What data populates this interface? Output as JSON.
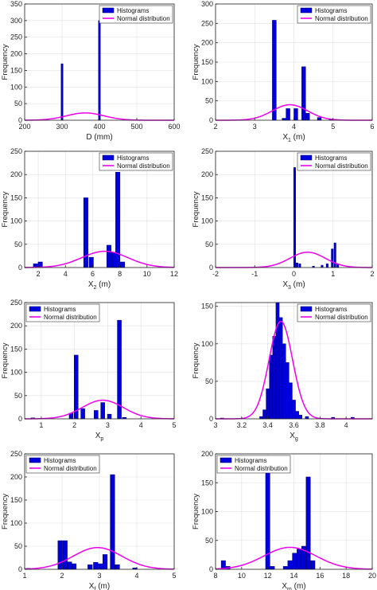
{
  "legend_labels": {
    "hist": "Histograms",
    "normal": "Normal distribution"
  },
  "colors": {
    "bar_fill": "#0000dd",
    "bar_edge": "#000066",
    "curve": "#ee00ee",
    "grid": "#e0e0e0",
    "axis": "#222222"
  },
  "chart_data": [
    {
      "type": "bar",
      "ylabel": "Frequency",
      "xlabel_main": "D (mm)",
      "xlabel_sub": "",
      "xlabel_unit": "",
      "xlim": [
        200,
        600
      ],
      "ylim": [
        0,
        350
      ],
      "xticks": [
        "200",
        "300",
        "400",
        "500",
        "600"
      ],
      "yticks": [
        "0",
        "50",
        "100",
        "150",
        "200",
        "250",
        "300",
        "350"
      ],
      "grid": true,
      "legend_position": "top-right",
      "bin_width": 5,
      "bars": [
        {
          "x": 300,
          "y": 170
        },
        {
          "x": 400,
          "y": 300
        }
      ],
      "normal": {
        "mean": 362,
        "sd": 50,
        "peak": 22
      }
    },
    {
      "type": "bar",
      "ylabel": "Frequency",
      "xlabel_main": "X",
      "xlabel_sub": "1",
      "xlabel_unit": " (m)",
      "xlim": [
        2,
        6
      ],
      "ylim": [
        0,
        300
      ],
      "xticks": [
        "2",
        "3",
        "4",
        "5",
        "6"
      ],
      "yticks": [
        "0",
        "50",
        "100",
        "150",
        "200",
        "250",
        "300"
      ],
      "grid": true,
      "legend_position": "top-right",
      "bin_width": 0.1,
      "bars": [
        {
          "x": 3.5,
          "y": 258
        },
        {
          "x": 3.75,
          "y": 5
        },
        {
          "x": 3.85,
          "y": 30
        },
        {
          "x": 4.05,
          "y": 30
        },
        {
          "x": 4.25,
          "y": 138
        },
        {
          "x": 4.35,
          "y": 18
        },
        {
          "x": 4.65,
          "y": 7
        },
        {
          "x": 4.95,
          "y": 3
        }
      ],
      "normal": {
        "mean": 3.9,
        "sd": 0.45,
        "peak": 40
      }
    },
    {
      "type": "bar",
      "ylabel": "Frequency",
      "xlabel_main": "X",
      "xlabel_sub": "2",
      "xlabel_unit": " (m)",
      "xlim": [
        1,
        12
      ],
      "ylim": [
        0,
        250
      ],
      "xticks": [
        "2",
        "4",
        "6",
        "8",
        "10",
        "12"
      ],
      "yticks": [
        "0",
        "50",
        "100",
        "150",
        "200",
        "250"
      ],
      "grid": true,
      "legend_position": "top-right",
      "bin_width": 0.32,
      "bars": [
        {
          "x": 1.8,
          "y": 8
        },
        {
          "x": 2.15,
          "y": 12
        },
        {
          "x": 5.5,
          "y": 150
        },
        {
          "x": 5.9,
          "y": 22
        },
        {
          "x": 7.2,
          "y": 48
        },
        {
          "x": 7.55,
          "y": 32
        },
        {
          "x": 7.85,
          "y": 205
        },
        {
          "x": 8.2,
          "y": 12
        }
      ],
      "normal": {
        "mean": 6.9,
        "sd": 1.7,
        "peak": 35
      }
    },
    {
      "type": "bar",
      "ylabel": "Frequency",
      "xlabel_main": "X",
      "xlabel_sub": "3",
      "xlabel_unit": " (m)",
      "xlim": [
        -2,
        2
      ],
      "ylim": [
        0,
        250
      ],
      "xticks": [
        "-2",
        "-1",
        "0",
        "1",
        "2"
      ],
      "yticks": [
        "0",
        "50",
        "100",
        "150",
        "200",
        "250"
      ],
      "grid": true,
      "legend_position": "top-right",
      "bin_width": 0.05,
      "bars": [
        {
          "x": 0.02,
          "y": 215
        },
        {
          "x": 0.08,
          "y": 10
        },
        {
          "x": 0.15,
          "y": 8
        },
        {
          "x": 0.5,
          "y": 3
        },
        {
          "x": 0.72,
          "y": 5
        },
        {
          "x": 0.85,
          "y": 8
        },
        {
          "x": 0.98,
          "y": 40
        },
        {
          "x": 1.05,
          "y": 53
        },
        {
          "x": 1.12,
          "y": 8
        }
      ],
      "normal": {
        "mean": 0.35,
        "sd": 0.45,
        "peak": 33
      }
    },
    {
      "type": "bar",
      "ylabel": "Frequency",
      "xlabel_main": "X",
      "xlabel_sub": "p",
      "xlabel_unit": "",
      "xlim": [
        0.5,
        5
      ],
      "ylim": [
        0,
        250
      ],
      "xticks": [
        "1",
        "2",
        "3",
        "4",
        "5"
      ],
      "yticks": [
        "0",
        "50",
        "100",
        "150",
        "200",
        "250"
      ],
      "grid": true,
      "legend_position": "top-left",
      "bin_width": 0.12,
      "bars": [
        {
          "x": 0.75,
          "y": 2
        },
        {
          "x": 1.9,
          "y": 12
        },
        {
          "x": 2.05,
          "y": 137
        },
        {
          "x": 2.25,
          "y": 22
        },
        {
          "x": 2.65,
          "y": 18
        },
        {
          "x": 2.85,
          "y": 35
        },
        {
          "x": 3.05,
          "y": 10
        },
        {
          "x": 3.35,
          "y": 212
        },
        {
          "x": 3.5,
          "y": 3
        }
      ],
      "normal": {
        "mean": 2.85,
        "sd": 0.62,
        "peak": 40
      }
    },
    {
      "type": "bar",
      "ylabel": "Frequency",
      "xlabel_main": "X",
      "xlabel_sub": "g",
      "xlabel_unit": "",
      "xlim": [
        3,
        4.2
      ],
      "ylim": [
        0,
        155
      ],
      "xticks": [
        "3",
        "3.2",
        "3.4",
        "3.6",
        "3.8",
        "4"
      ],
      "yticks": [
        "0",
        "50",
        "100",
        "150"
      ],
      "grid": true,
      "legend_position": "top-right",
      "bin_width": 0.025,
      "bars": [
        {
          "x": 3.05,
          "y": 1
        },
        {
          "x": 3.35,
          "y": 3
        },
        {
          "x": 3.375,
          "y": 12
        },
        {
          "x": 3.4,
          "y": 40
        },
        {
          "x": 3.425,
          "y": 85
        },
        {
          "x": 3.45,
          "y": 110
        },
        {
          "x": 3.475,
          "y": 155
        },
        {
          "x": 3.5,
          "y": 135
        },
        {
          "x": 3.525,
          "y": 100
        },
        {
          "x": 3.55,
          "y": 75
        },
        {
          "x": 3.575,
          "y": 48
        },
        {
          "x": 3.6,
          "y": 25
        },
        {
          "x": 3.625,
          "y": 10
        },
        {
          "x": 3.65,
          "y": 5
        },
        {
          "x": 3.7,
          "y": 3
        },
        {
          "x": 3.9,
          "y": 2
        },
        {
          "x": 4.05,
          "y": 2
        }
      ],
      "normal": {
        "mean": 3.5,
        "sd": 0.09,
        "peak": 130
      }
    },
    {
      "type": "bar",
      "ylabel": "Frequency",
      "xlabel_main": "X",
      "xlabel_sub": "f",
      "xlabel_unit": " (m)",
      "xlim": [
        1,
        5
      ],
      "ylim": [
        0,
        250
      ],
      "xticks": [
        "1",
        "2",
        "3",
        "4",
        "5"
      ],
      "yticks": [
        "0",
        "50",
        "100",
        "150",
        "200",
        "250"
      ],
      "grid": true,
      "legend_position": "top-left",
      "bin_width": 0.12,
      "bars": [
        {
          "x": 1.1,
          "y": 2
        },
        {
          "x": 1.95,
          "y": 62
        },
        {
          "x": 2.08,
          "y": 62
        },
        {
          "x": 2.2,
          "y": 16
        },
        {
          "x": 2.32,
          "y": 12
        },
        {
          "x": 2.75,
          "y": 10
        },
        {
          "x": 2.9,
          "y": 15
        },
        {
          "x": 3.03,
          "y": 12
        },
        {
          "x": 3.15,
          "y": 32
        },
        {
          "x": 3.35,
          "y": 205
        },
        {
          "x": 3.48,
          "y": 10
        },
        {
          "x": 3.95,
          "y": 3
        }
      ],
      "normal": {
        "mean": 2.95,
        "sd": 0.65,
        "peak": 47
      }
    },
    {
      "type": "bar",
      "ylabel": "Frequency",
      "xlabel_main": "X",
      "xlabel_sub": "m",
      "xlabel_unit": " (m)",
      "xlim": [
        8,
        20
      ],
      "ylim": [
        0,
        200
      ],
      "xticks": [
        "8",
        "10",
        "12",
        "14",
        "16",
        "18",
        "20"
      ],
      "yticks": [
        "0",
        "50",
        "100",
        "150",
        "200"
      ],
      "grid": true,
      "legend_position": "top-left",
      "bin_width": 0.33,
      "bars": [
        {
          "x": 8.6,
          "y": 15
        },
        {
          "x": 8.95,
          "y": 5
        },
        {
          "x": 12.0,
          "y": 175
        },
        {
          "x": 12.35,
          "y": 5
        },
        {
          "x": 13.35,
          "y": 5
        },
        {
          "x": 13.7,
          "y": 15
        },
        {
          "x": 14.05,
          "y": 28
        },
        {
          "x": 14.4,
          "y": 35
        },
        {
          "x": 14.75,
          "y": 40
        },
        {
          "x": 15.1,
          "y": 160
        },
        {
          "x": 15.45,
          "y": 15
        }
      ],
      "normal": {
        "mean": 13.7,
        "sd": 2.0,
        "peak": 38
      }
    }
  ]
}
